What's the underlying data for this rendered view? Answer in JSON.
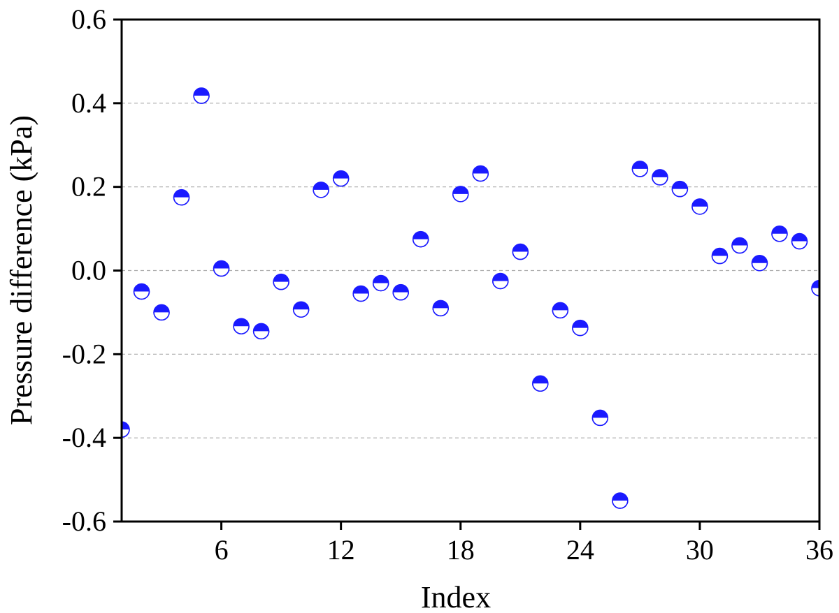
{
  "chart_data": {
    "type": "scatter",
    "title": "",
    "xlabel": "Index",
    "ylabel": "Pressure difference (kPa)",
    "xlim": [
      1,
      36
    ],
    "ylim": [
      -0.6,
      0.6
    ],
    "x_ticks": [
      6,
      12,
      18,
      24,
      30,
      36
    ],
    "x_tick_labels": [
      "6",
      "12",
      "18",
      "24",
      "30",
      "36"
    ],
    "y_ticks": [
      -0.6,
      -0.4,
      -0.2,
      0.0,
      0.2,
      0.4,
      0.6
    ],
    "y_tick_labels": [
      "-0.6",
      "-0.4",
      "-0.2",
      "0.0",
      "0.2",
      "0.4",
      "0.6"
    ],
    "grid": "horizontal dashed",
    "legend": "none",
    "marker": "half-filled circle (bottom white, top blue)",
    "colors": {
      "marker": "#1a1aff",
      "grid": "#aaaaaa",
      "axis": "#000000"
    },
    "x": [
      1,
      2,
      3,
      4,
      5,
      6,
      7,
      8,
      9,
      10,
      11,
      12,
      13,
      14,
      15,
      16,
      17,
      18,
      19,
      20,
      21,
      22,
      23,
      24,
      25,
      26,
      27,
      28,
      29,
      30,
      31,
      32,
      33,
      34,
      35,
      36
    ],
    "y": [
      -0.38,
      -0.05,
      -0.1,
      0.175,
      0.418,
      0.005,
      -0.133,
      -0.145,
      -0.027,
      -0.093,
      0.193,
      0.22,
      -0.055,
      -0.03,
      -0.052,
      0.075,
      -0.09,
      0.183,
      0.232,
      -0.025,
      0.045,
      -0.27,
      -0.095,
      -0.137,
      -0.352,
      -0.55,
      0.243,
      0.223,
      0.195,
      0.153,
      0.035,
      0.06,
      0.018,
      0.088,
      0.07,
      -0.042
    ]
  }
}
